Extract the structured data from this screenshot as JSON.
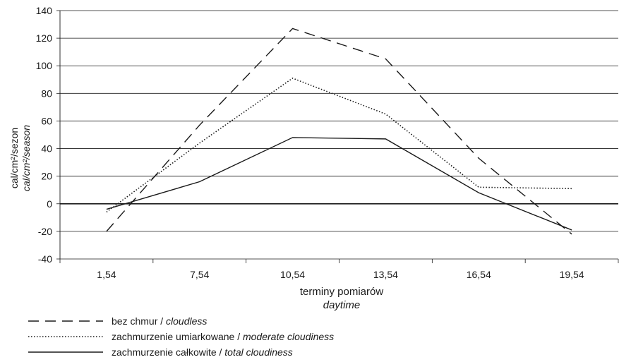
{
  "chart_data": {
    "type": "line",
    "categories": [
      "1,54",
      "7,54",
      "10,54",
      "13,54",
      "16,54",
      "19,54"
    ],
    "xlabel": "terminy  pomiarów",
    "xlabel_en": "daytime",
    "ylabel_unit": "cal/cm²/sezon",
    "ylabel_unit_en": "cal/cm²/season",
    "ylim": [
      -40,
      140
    ],
    "yticks": [
      -40,
      -20,
      0,
      20,
      40,
      60,
      80,
      100,
      120,
      140
    ],
    "grid": "horizontal",
    "legend_position": "bottom-left",
    "series": [
      {
        "name": "bez chmur",
        "name_en": "cloudless",
        "style": "dashed",
        "values": [
          -20,
          57,
          127,
          105,
          33,
          -22
        ]
      },
      {
        "name": "zachmurzenie umiarkowane",
        "name_en": "moderate cloudiness",
        "style": "dotted",
        "values": [
          -6,
          44,
          91,
          65,
          12,
          11
        ]
      },
      {
        "name": "zachmurzenie całkowite",
        "name_en": "total cloudiness",
        "style": "solid",
        "values": [
          -4,
          16,
          48,
          47,
          8,
          -19
        ]
      }
    ],
    "x_value_overrides_note": ""
  },
  "colors": {
    "line": "#1a1a1a",
    "grid": "#1a1a1a",
    "background": "#ffffff"
  }
}
